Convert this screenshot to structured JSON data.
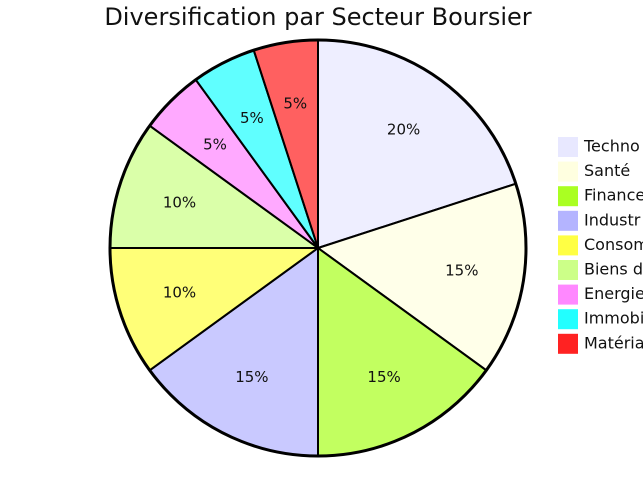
{
  "chart_data": {
    "type": "pie",
    "title": "Diversification par Secteur Boursier",
    "categories": [
      "Techno",
      "Santé",
      "Finance",
      "Industr",
      "Consom",
      "Biens d",
      "Energie",
      "Immobi",
      "Matéria"
    ],
    "values": [
      20,
      15,
      15,
      15,
      10,
      10,
      5,
      5,
      5
    ],
    "value_labels": [
      "20%",
      "15%",
      "15%",
      "15%",
      "10%",
      "10%",
      "5%",
      "5%",
      "5%"
    ],
    "colors": [
      "#e8e8ff",
      "#ffffe0",
      "#aaff22",
      "#b4b4ff",
      "#ffff44",
      "#ccff88",
      "#ff88ff",
      "#22ffff",
      "#ff2222"
    ],
    "legend": "right"
  }
}
